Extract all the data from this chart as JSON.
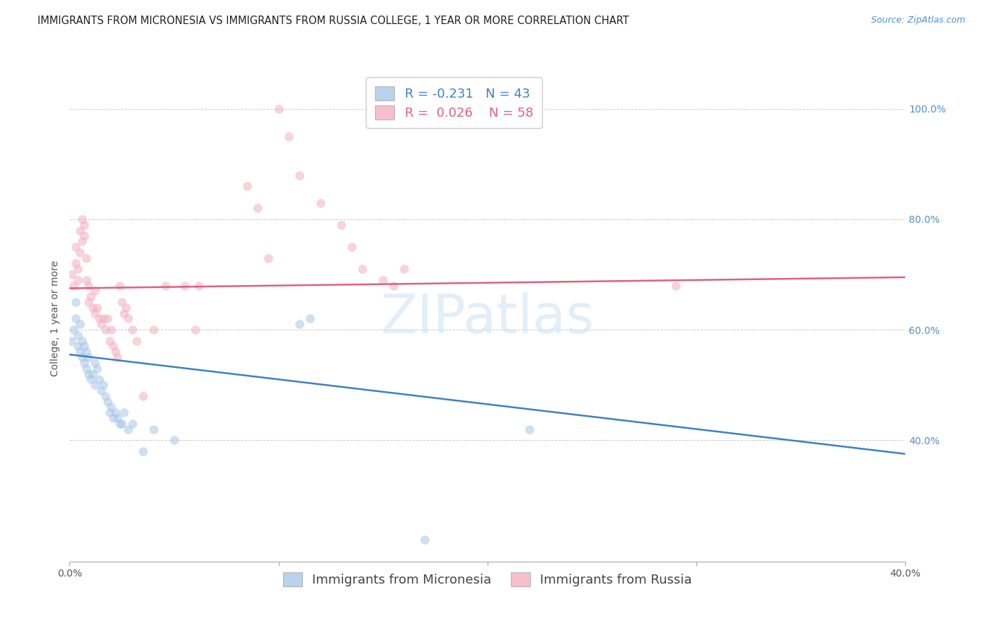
{
  "title": "IMMIGRANTS FROM MICRONESIA VS IMMIGRANTS FROM RUSSIA COLLEGE, 1 YEAR OR MORE CORRELATION CHART",
  "source": "Source: ZipAtlas.com",
  "ylabel": "College, 1 year or more",
  "right_yticks": [
    "100.0%",
    "80.0%",
    "60.0%",
    "40.0%"
  ],
  "right_ytick_vals": [
    1.0,
    0.8,
    0.6,
    0.4
  ],
  "xlim": [
    0.0,
    0.4
  ],
  "ylim": [
    0.18,
    1.06
  ],
  "grid_color": "#cccccc",
  "background_color": "#ffffff",
  "watermark": "ZIPatlas",
  "legend_R_micronesia": "-0.231",
  "legend_N_micronesia": "43",
  "legend_R_russia": "0.026",
  "legend_N_russia": "58",
  "micronesia_color": "#a8c8e8",
  "russia_color": "#f4b0c0",
  "micronesia_line_color": "#4080c0",
  "russia_line_color": "#e06080",
  "micronesia_scatter": [
    [
      0.001,
      0.58
    ],
    [
      0.002,
      0.6
    ],
    [
      0.003,
      0.65
    ],
    [
      0.003,
      0.62
    ],
    [
      0.004,
      0.57
    ],
    [
      0.004,
      0.59
    ],
    [
      0.005,
      0.56
    ],
    [
      0.005,
      0.61
    ],
    [
      0.006,
      0.55
    ],
    [
      0.006,
      0.58
    ],
    [
      0.007,
      0.57
    ],
    [
      0.007,
      0.54
    ],
    [
      0.008,
      0.53
    ],
    [
      0.008,
      0.56
    ],
    [
      0.009,
      0.52
    ],
    [
      0.009,
      0.55
    ],
    [
      0.01,
      0.51
    ],
    [
      0.011,
      0.52
    ],
    [
      0.012,
      0.5
    ],
    [
      0.012,
      0.54
    ],
    [
      0.013,
      0.53
    ],
    [
      0.014,
      0.51
    ],
    [
      0.015,
      0.49
    ],
    [
      0.016,
      0.5
    ],
    [
      0.017,
      0.48
    ],
    [
      0.018,
      0.47
    ],
    [
      0.019,
      0.45
    ],
    [
      0.02,
      0.46
    ],
    [
      0.021,
      0.44
    ],
    [
      0.022,
      0.45
    ],
    [
      0.023,
      0.44
    ],
    [
      0.024,
      0.43
    ],
    [
      0.025,
      0.43
    ],
    [
      0.026,
      0.45
    ],
    [
      0.028,
      0.42
    ],
    [
      0.03,
      0.43
    ],
    [
      0.035,
      0.38
    ],
    [
      0.04,
      0.42
    ],
    [
      0.05,
      0.4
    ],
    [
      0.11,
      0.61
    ],
    [
      0.115,
      0.62
    ],
    [
      0.17,
      0.22
    ],
    [
      0.22,
      0.42
    ]
  ],
  "russia_scatter": [
    [
      0.001,
      0.7
    ],
    [
      0.002,
      0.68
    ],
    [
      0.003,
      0.72
    ],
    [
      0.003,
      0.75
    ],
    [
      0.004,
      0.69
    ],
    [
      0.004,
      0.71
    ],
    [
      0.005,
      0.74
    ],
    [
      0.005,
      0.78
    ],
    [
      0.006,
      0.76
    ],
    [
      0.006,
      0.8
    ],
    [
      0.007,
      0.79
    ],
    [
      0.007,
      0.77
    ],
    [
      0.008,
      0.73
    ],
    [
      0.008,
      0.69
    ],
    [
      0.009,
      0.68
    ],
    [
      0.009,
      0.65
    ],
    [
      0.01,
      0.66
    ],
    [
      0.011,
      0.64
    ],
    [
      0.012,
      0.63
    ],
    [
      0.012,
      0.67
    ],
    [
      0.013,
      0.64
    ],
    [
      0.014,
      0.62
    ],
    [
      0.015,
      0.61
    ],
    [
      0.016,
      0.62
    ],
    [
      0.017,
      0.6
    ],
    [
      0.018,
      0.62
    ],
    [
      0.019,
      0.58
    ],
    [
      0.02,
      0.6
    ],
    [
      0.021,
      0.57
    ],
    [
      0.022,
      0.56
    ],
    [
      0.023,
      0.55
    ],
    [
      0.024,
      0.68
    ],
    [
      0.025,
      0.65
    ],
    [
      0.026,
      0.63
    ],
    [
      0.027,
      0.64
    ],
    [
      0.028,
      0.62
    ],
    [
      0.03,
      0.6
    ],
    [
      0.032,
      0.58
    ],
    [
      0.035,
      0.48
    ],
    [
      0.04,
      0.6
    ],
    [
      0.046,
      0.68
    ],
    [
      0.055,
      0.68
    ],
    [
      0.06,
      0.6
    ],
    [
      0.062,
      0.68
    ],
    [
      0.085,
      0.86
    ],
    [
      0.09,
      0.82
    ],
    [
      0.095,
      0.73
    ],
    [
      0.1,
      1.0
    ],
    [
      0.105,
      0.95
    ],
    [
      0.11,
      0.88
    ],
    [
      0.12,
      0.83
    ],
    [
      0.13,
      0.79
    ],
    [
      0.135,
      0.75
    ],
    [
      0.14,
      0.71
    ],
    [
      0.15,
      0.69
    ],
    [
      0.155,
      0.68
    ],
    [
      0.16,
      0.71
    ],
    [
      0.29,
      0.68
    ]
  ],
  "title_fontsize": 10.5,
  "axis_label_fontsize": 10,
  "tick_fontsize": 10,
  "legend_fontsize": 13,
  "source_fontsize": 9,
  "marker_size": 70,
  "marker_alpha": 0.55,
  "marker_linewidth": 0.5
}
